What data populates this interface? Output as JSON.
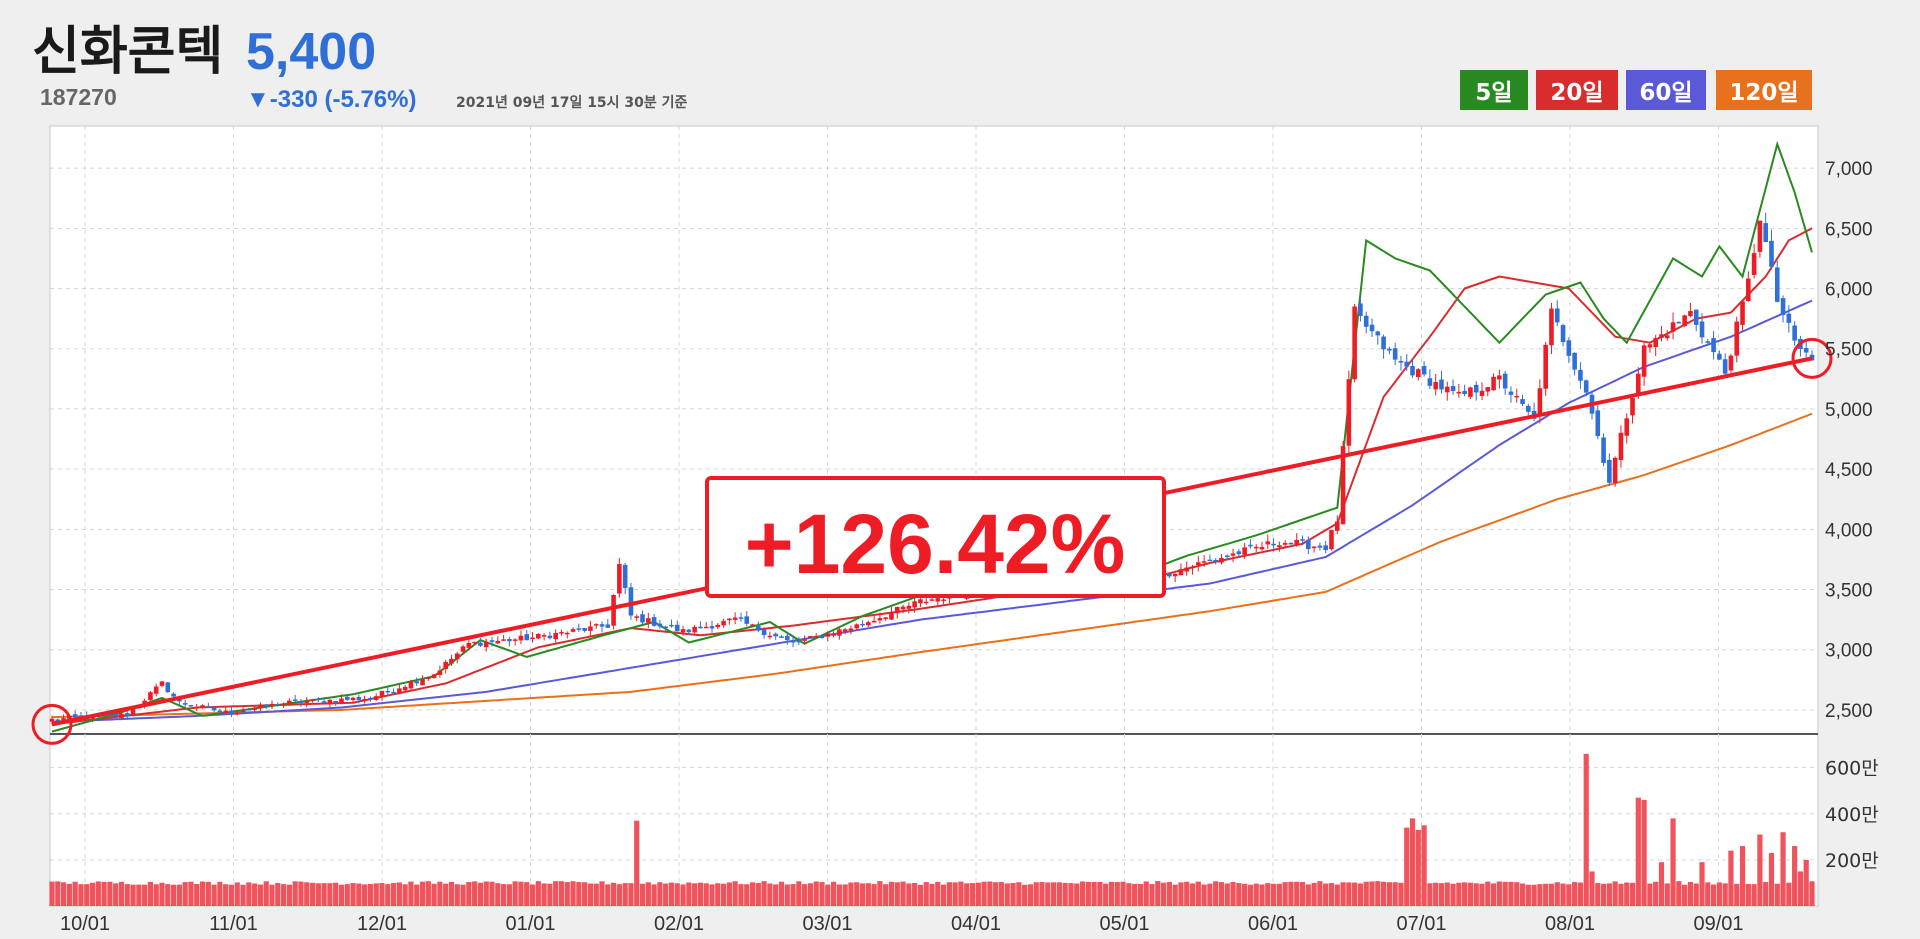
{
  "header": {
    "name": "신화콘텍",
    "price": "5,400",
    "code": "187270",
    "change": "▼-330 (-5.76%)",
    "date": "2021년 09년 17일 15시 30분 기준"
  },
  "legend": [
    {
      "label": "5일",
      "color": "#2a8a22"
    },
    {
      "label": "20일",
      "color": "#d92d2d"
    },
    {
      "label": "60일",
      "color": "#5a5ad8"
    },
    {
      "label": "120일",
      "color": "#e8711e"
    }
  ],
  "callout": "+126.42%",
  "colors": {
    "up": "#ee1c25",
    "down": "#2f6fd6",
    "trend": "#ee1c25",
    "volume": "#f0535c"
  },
  "chart_data": {
    "type": "candlestick",
    "price_axis": {
      "ticks": [
        "7,000",
        "6,500",
        "6,000",
        "5,500",
        "5,000",
        "4,500",
        "4,000",
        "3,500",
        "3,000",
        "2,500"
      ],
      "tick_values": [
        7000,
        6500,
        6000,
        5500,
        5000,
        4500,
        4000,
        3500,
        3000,
        2500
      ],
      "ylim": [
        2300,
        7350
      ]
    },
    "volume_axis": {
      "ticks": [
        "600만",
        "400만",
        "200만"
      ],
      "tick_values": [
        600,
        400,
        200
      ],
      "ylim": [
        0,
        720
      ]
    },
    "x_ticks": [
      "10/01",
      "11/01",
      "12/01",
      "01/01",
      "02/01",
      "03/01",
      "04/01",
      "05/01",
      "06/01",
      "07/01",
      "08/01",
      "09/01"
    ],
    "close_anchors": [
      [
        0,
        2420
      ],
      [
        7,
        2440
      ],
      [
        13,
        2460
      ],
      [
        19,
        2720
      ],
      [
        22,
        2560
      ],
      [
        30,
        2480
      ],
      [
        41,
        2560
      ],
      [
        55,
        2600
      ],
      [
        66,
        2800
      ],
      [
        72,
        3050
      ],
      [
        83,
        3100
      ],
      [
        96,
        3200
      ],
      [
        98,
        3700
      ],
      [
        100,
        3280
      ],
      [
        109,
        3150
      ],
      [
        118,
        3250
      ],
      [
        128,
        3050
      ],
      [
        139,
        3200
      ],
      [
        150,
        3400
      ],
      [
        170,
        3600
      ],
      [
        181,
        3700
      ],
      [
        185,
        3520
      ],
      [
        197,
        3700
      ],
      [
        212,
        3900
      ],
      [
        220,
        3850
      ],
      [
        222,
        4080
      ],
      [
        225,
        5800
      ],
      [
        232,
        5400
      ],
      [
        243,
        5100
      ],
      [
        250,
        5250
      ],
      [
        256,
        4900
      ],
      [
        259,
        5800
      ],
      [
        265,
        5150
      ],
      [
        269,
        4400
      ],
      [
        275,
        5500
      ],
      [
        283,
        5800
      ],
      [
        289,
        5300
      ],
      [
        293,
        6050
      ],
      [
        295,
        6600
      ],
      [
        298,
        5900
      ],
      [
        301,
        5550
      ],
      [
        304,
        5400
      ]
    ],
    "ma5_anchors": [
      [
        0,
        2320
      ],
      [
        12,
        2480
      ],
      [
        19,
        2600
      ],
      [
        26,
        2450
      ],
      [
        52,
        2630
      ],
      [
        66,
        2780
      ],
      [
        74,
        3080
      ],
      [
        82,
        2940
      ],
      [
        96,
        3130
      ],
      [
        104,
        3230
      ],
      [
        110,
        3060
      ],
      [
        124,
        3230
      ],
      [
        130,
        3050
      ],
      [
        140,
        3280
      ],
      [
        150,
        3450
      ],
      [
        172,
        3600
      ],
      [
        186,
        3600
      ],
      [
        196,
        3780
      ],
      [
        208,
        3950
      ],
      [
        222,
        4180
      ],
      [
        227,
        6400
      ],
      [
        232,
        6250
      ],
      [
        238,
        6150
      ],
      [
        250,
        5550
      ],
      [
        258,
        5950
      ],
      [
        264,
        6050
      ],
      [
        268,
        5750
      ],
      [
        272,
        5550
      ],
      [
        280,
        6250
      ],
      [
        285,
        6100
      ],
      [
        288,
        6350
      ],
      [
        292,
        6100
      ],
      [
        298,
        7200
      ],
      [
        301,
        6800
      ],
      [
        304,
        6300
      ]
    ],
    "ma20_anchors": [
      [
        0,
        2380
      ],
      [
        25,
        2520
      ],
      [
        52,
        2560
      ],
      [
        68,
        2720
      ],
      [
        84,
        3020
      ],
      [
        100,
        3180
      ],
      [
        112,
        3120
      ],
      [
        128,
        3200
      ],
      [
        150,
        3340
      ],
      [
        172,
        3500
      ],
      [
        186,
        3550
      ],
      [
        200,
        3720
      ],
      [
        216,
        3880
      ],
      [
        222,
        4050
      ],
      [
        230,
        5100
      ],
      [
        238,
        5600
      ],
      [
        244,
        6000
      ],
      [
        250,
        6100
      ],
      [
        262,
        6000
      ],
      [
        270,
        5600
      ],
      [
        276,
        5550
      ],
      [
        284,
        5750
      ],
      [
        290,
        5800
      ],
      [
        296,
        6100
      ],
      [
        300,
        6400
      ],
      [
        304,
        6500
      ]
    ],
    "ma60_anchors": [
      [
        0,
        2400
      ],
      [
        25,
        2450
      ],
      [
        50,
        2520
      ],
      [
        75,
        2650
      ],
      [
        100,
        2850
      ],
      [
        125,
        3050
      ],
      [
        150,
        3250
      ],
      [
        175,
        3400
      ],
      [
        200,
        3550
      ],
      [
        220,
        3770
      ],
      [
        235,
        4200
      ],
      [
        250,
        4700
      ],
      [
        262,
        5050
      ],
      [
        275,
        5350
      ],
      [
        290,
        5600
      ],
      [
        304,
        5900
      ]
    ],
    "ma120_anchors": [
      [
        0,
        2440
      ],
      [
        50,
        2500
      ],
      [
        100,
        2650
      ],
      [
        125,
        2800
      ],
      [
        150,
        2980
      ],
      [
        175,
        3150
      ],
      [
        200,
        3320
      ],
      [
        220,
        3480
      ],
      [
        240,
        3900
      ],
      [
        260,
        4250
      ],
      [
        275,
        4450
      ],
      [
        290,
        4700
      ],
      [
        304,
        4960
      ]
    ],
    "volume_base": 100,
    "volume_spikes": [
      [
        101,
        370
      ],
      [
        234,
        340
      ],
      [
        235,
        380
      ],
      [
        236,
        330
      ],
      [
        237,
        350
      ],
      [
        265,
        660
      ],
      [
        266,
        150
      ],
      [
        274,
        470
      ],
      [
        275,
        460
      ],
      [
        278,
        190
      ],
      [
        280,
        380
      ],
      [
        285,
        190
      ],
      [
        290,
        240
      ],
      [
        292,
        260
      ],
      [
        295,
        310
      ],
      [
        297,
        230
      ],
      [
        299,
        320
      ],
      [
        301,
        260
      ],
      [
        302,
        150
      ],
      [
        303,
        200
      ]
    ],
    "trendline": {
      "from": [
        0,
        2380
      ],
      "to": [
        304,
        5420
      ]
    },
    "markers": [
      [
        0,
        2380
      ],
      [
        304,
        5420
      ]
    ]
  }
}
